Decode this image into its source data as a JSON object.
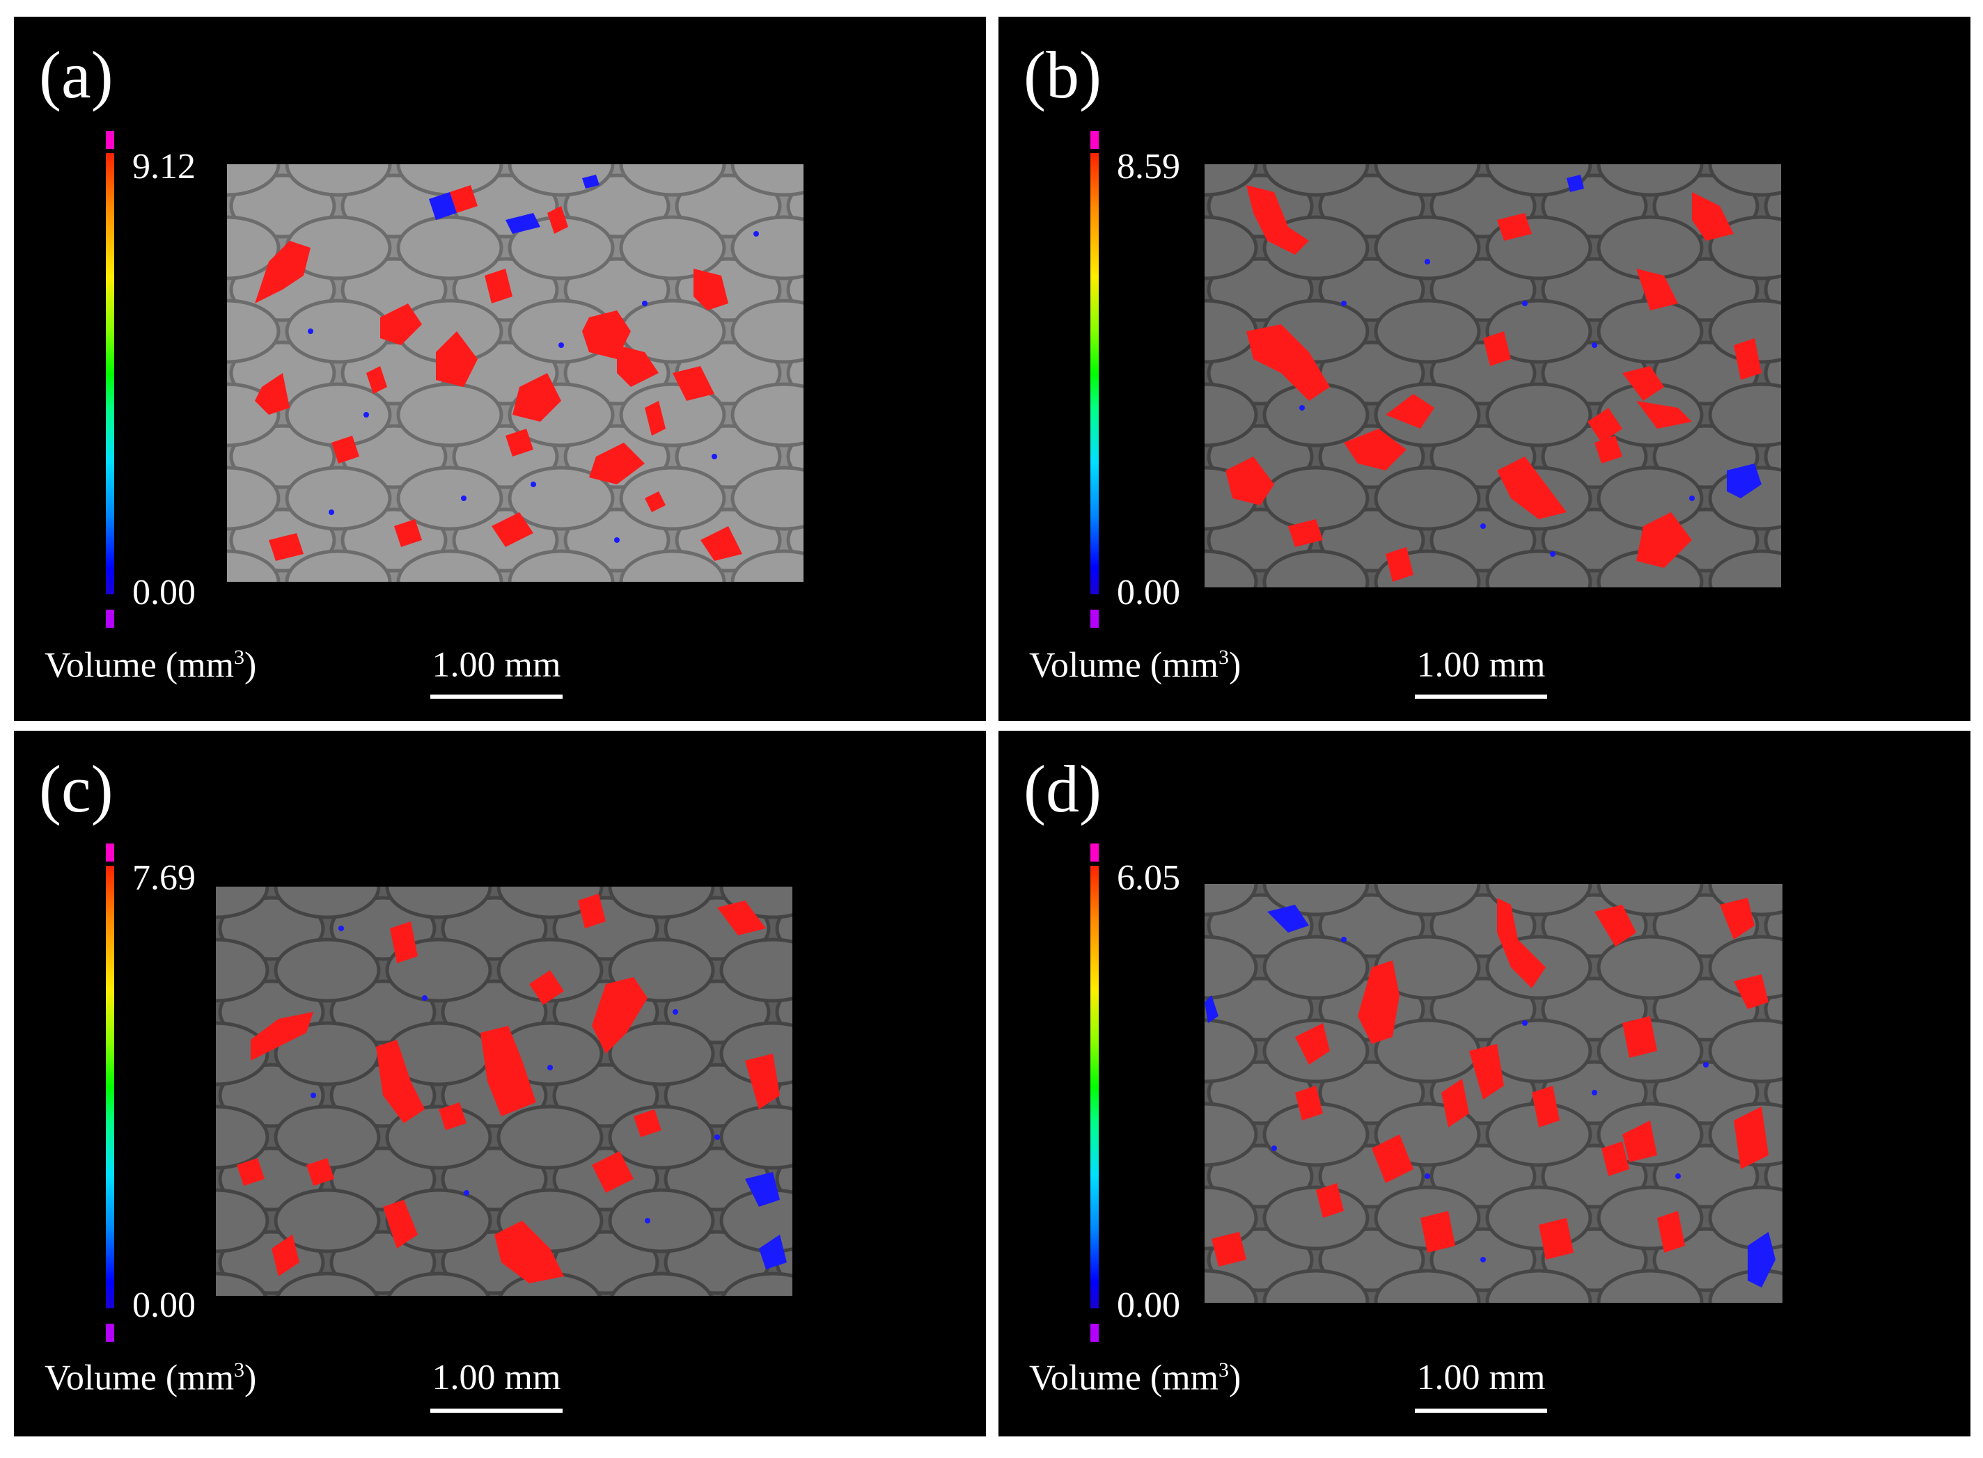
{
  "figure": {
    "colorbar_title": "Volume (mm",
    "colorbar_title_sup": "3",
    "colorbar_title_end": ")",
    "scale_bar_label": "1.00 mm",
    "colors": {
      "background": "#000000",
      "separator": "#ffffff",
      "large_pore": "#ff1a1a",
      "small_pore": "#1a1aff",
      "specimen": "#8a8a8a"
    }
  },
  "panels": [
    {
      "label": "(a)",
      "cbar_max": "9.12",
      "cbar_min": "0.00"
    },
    {
      "label": "(b)",
      "cbar_max": "8.59",
      "cbar_min": "0.00"
    },
    {
      "label": "(c)",
      "cbar_max": "7.69",
      "cbar_min": "0.00"
    },
    {
      "label": "(d)",
      "cbar_max": "6.05",
      "cbar_min": "0.00"
    }
  ]
}
